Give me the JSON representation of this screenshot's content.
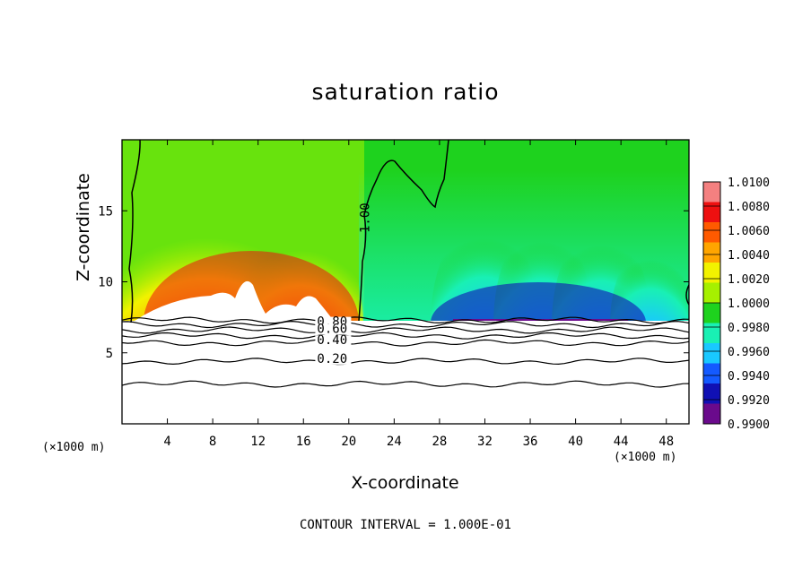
{
  "chart_data": {
    "type": "heatmap",
    "title": "saturation ratio",
    "xlabel": "X-coordinate",
    "ylabel": "Z-coordinate",
    "x_unit_label": "(×1000 m)",
    "footer": "CONTOUR INTERVAL = 1.000E-01",
    "xlim": [
      0,
      50
    ],
    "ylim": [
      0,
      20
    ],
    "x_ticks": [
      4,
      8,
      12,
      16,
      20,
      24,
      28,
      32,
      36,
      40,
      44,
      48
    ],
    "y_ticks": [
      5,
      10,
      15
    ],
    "colorbar": {
      "levels": [
        "1.0100",
        "1.0080",
        "1.0060",
        "1.0040",
        "1.0020",
        "1.0000",
        "0.9980",
        "0.9960",
        "0.9940",
        "0.9920",
        "0.9900"
      ],
      "colors": [
        "#f48080",
        "#ee1010",
        "#ff5a00",
        "#ffa500",
        "#f2f200",
        "#a6f000",
        "#1ed21e",
        "#19f0b4",
        "#19c8ff",
        "#145aff",
        "#1010b4",
        "#6a0a8c"
      ]
    },
    "contour_labels": [
      {
        "text": "1.00",
        "x": 21.8,
        "z": 14.5
      },
      {
        "text": "0.80",
        "x": 17.2,
        "z": 6.9
      },
      {
        "text": "0.60",
        "x": 17.2,
        "z": 6.4
      },
      {
        "text": "0.40",
        "x": 17.2,
        "z": 5.6
      },
      {
        "text": "0.20",
        "x": 17.2,
        "z": 4.3
      }
    ],
    "low_level_contours_z": [
      7.3,
      7.0,
      6.6,
      6.2,
      5.7,
      4.4,
      2.8
    ]
  }
}
